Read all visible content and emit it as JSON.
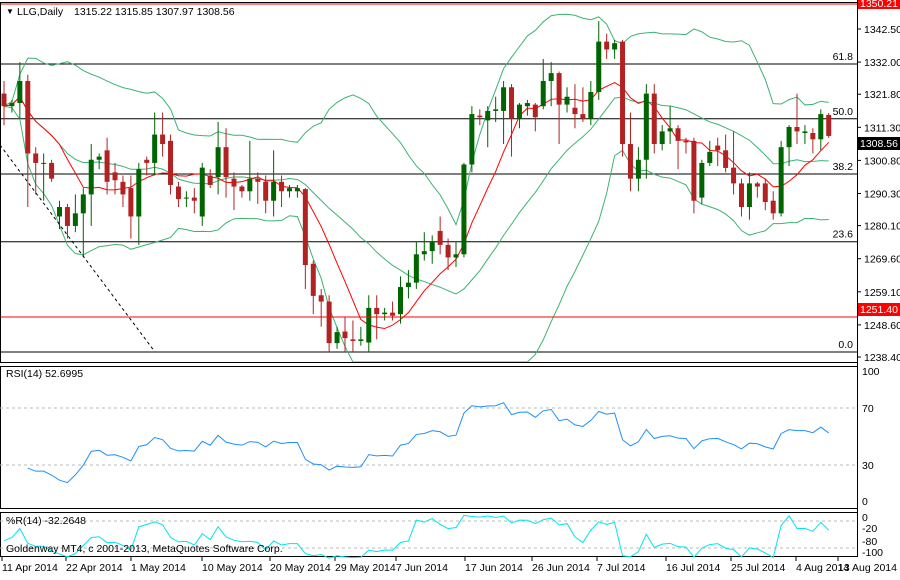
{
  "header": {
    "symbol": "LLG,Daily",
    "ohlc": "1315.22 1315.85 1307.97 1308.56"
  },
  "rsi_panel": {
    "label": "RSI(14) 52.6995",
    "ticks": [
      "100",
      "70",
      "30",
      "0"
    ]
  },
  "wpr_panel": {
    "label": "%R(14) -32.2648",
    "ticks": [
      "0",
      "-20",
      "-80",
      "-100"
    ]
  },
  "copyright": "Goldenway MT4, c 2001-2013, MetaQuotes Software Corp.",
  "colors": {
    "bull": "#006400",
    "bear": "#B22222",
    "ma": "#FF0000",
    "bands": "#3CB371",
    "rsi": "#1E90FF",
    "wpr": "#00E5EE"
  },
  "chart_data": {
    "type": "candlestick",
    "price_axis": {
      "range": [
        1238.4,
        1342.5
      ],
      "ticks": [
        "1342.50",
        "1332.00",
        "1321.80",
        "1311.30",
        "1300.80",
        "1290.30",
        "1280.10",
        "1269.60",
        "1259.10",
        "1248.60",
        "1238.40"
      ]
    },
    "date_ticks": [
      "11 Apr 2014",
      "22 Apr 2014",
      "1 May 2014",
      "10 May 2014",
      "20 May 2014",
      "29 May 2014",
      "7 Jun 2014",
      "17 Jun 2014",
      "26 Jun 2014",
      "7 Jul 2014",
      "16 Jul 2014",
      "25 Jul 2014",
      "4 Aug 2014",
      "13 Aug 2014"
    ],
    "price_labels": {
      "current": "1308.56",
      "red_line": "1251.40",
      "top_line": "1350.21"
    },
    "fib_levels": [
      {
        "label": "61.8",
        "price": 1331.4
      },
      {
        "label": "50.0",
        "price": 1314.0
      },
      {
        "label": "38.2",
        "price": 1296.5
      },
      {
        "label": "23.6",
        "price": 1275.0
      },
      {
        "label": "0.0",
        "price": 1240.0
      }
    ],
    "ohlc": [
      [
        1322,
        1326,
        1312,
        1318
      ],
      [
        1318,
        1320,
        1316,
        1319
      ],
      [
        1319,
        1332,
        1314,
        1326
      ],
      [
        1326,
        1328,
        1286,
        1303
      ],
      [
        1303,
        1305,
        1290,
        1300
      ],
      [
        1300,
        1303,
        1288,
        1300
      ],
      [
        1300,
        1301,
        1294,
        1295
      ],
      [
        1283,
        1288,
        1279,
        1286
      ],
      [
        1286,
        1287,
        1276,
        1280
      ],
      [
        1280,
        1290,
        1278,
        1284
      ],
      [
        1284,
        1292,
        1270,
        1290
      ],
      [
        1290,
        1306,
        1280,
        1301
      ],
      [
        1301,
        1303,
        1298,
        1302
      ],
      [
        1304,
        1308,
        1290,
        1294
      ],
      [
        1297,
        1300,
        1290,
        1294.5
      ],
      [
        1294,
        1296,
        1286,
        1290
      ],
      [
        1292,
        1296,
        1276,
        1283
      ],
      [
        1283,
        1300,
        1274,
        1298
      ],
      [
        1301,
        1302,
        1296,
        1300
      ],
      [
        1300,
        1316,
        1296,
        1309
      ],
      [
        1309,
        1316,
        1302,
        1306
      ],
      [
        1307,
        1309,
        1290,
        1293
      ],
      [
        1292.5,
        1294,
        1286,
        1288.5
      ],
      [
        1289,
        1291,
        1286,
        1289
      ],
      [
        1289,
        1292,
        1284,
        1288
      ],
      [
        1283,
        1300,
        1280,
        1298.5
      ],
      [
        1296,
        1298,
        1292,
        1293
      ],
      [
        1295.5,
        1313,
        1290,
        1305
      ],
      [
        1305,
        1311,
        1289,
        1295.5
      ],
      [
        1295,
        1297,
        1285,
        1292.5
      ],
      [
        1292.5,
        1293,
        1289,
        1291
      ],
      [
        1291,
        1307,
        1288,
        1295
      ],
      [
        1295,
        1297,
        1287,
        1294
      ],
      [
        1294,
        1296,
        1284,
        1288
      ],
      [
        1288,
        1304,
        1283,
        1294
      ],
      [
        1294,
        1296,
        1286,
        1291
      ],
      [
        1291,
        1293,
        1289,
        1292
      ],
      [
        1291,
        1293,
        1289,
        1292
      ],
      [
        1291.7,
        1292,
        1260,
        1267.6
      ],
      [
        1268,
        1269,
        1252,
        1257.8
      ],
      [
        1258,
        1260,
        1248,
        1256
      ],
      [
        1256,
        1258,
        1240,
        1242.8
      ],
      [
        1242.8,
        1248,
        1241,
        1246.3
      ],
      [
        1246.5,
        1251,
        1240,
        1244.4
      ],
      [
        1244,
        1250,
        1240,
        1243.5
      ],
      [
        1243.5,
        1248,
        1242,
        1244
      ],
      [
        1243,
        1258,
        1240,
        1254
      ],
      [
        1254,
        1258,
        1244,
        1252
      ],
      [
        1252,
        1254,
        1250,
        1252.5
      ],
      [
        1252.5,
        1256,
        1250,
        1251.5
      ],
      [
        1252,
        1264,
        1249,
        1260.6
      ],
      [
        1260.6,
        1266,
        1257,
        1262
      ],
      [
        1262,
        1275,
        1260,
        1271
      ],
      [
        1271,
        1278,
        1269,
        1272
      ],
      [
        1272,
        1277,
        1268,
        1275
      ],
      [
        1278.4,
        1283,
        1271,
        1274
      ],
      [
        1274,
        1276,
        1266,
        1270
      ],
      [
        1270,
        1275,
        1267,
        1271
      ],
      [
        1271,
        1300,
        1270,
        1299.5
      ],
      [
        1299.5,
        1318,
        1297,
        1315.5
      ],
      [
        1315,
        1317,
        1312,
        1314.5
      ],
      [
        1313.5,
        1318,
        1305,
        1316.5
      ],
      [
        1316.5,
        1321,
        1313,
        1317
      ],
      [
        1316.5,
        1326,
        1306,
        1324
      ],
      [
        1324,
        1325,
        1302,
        1314
      ],
      [
        1314,
        1319,
        1311,
        1318.5
      ],
      [
        1318,
        1320,
        1315,
        1319
      ],
      [
        1318.5,
        1319,
        1310,
        1314.5
      ],
      [
        1318,
        1333,
        1317,
        1326
      ],
      [
        1326,
        1332,
        1318,
        1328.5
      ],
      [
        1328.5,
        1329,
        1306,
        1318.5
      ],
      [
        1318.5,
        1324,
        1316,
        1321
      ],
      [
        1317.5,
        1325,
        1311,
        1315.5
      ],
      [
        1315.5,
        1324,
        1313,
        1314
      ],
      [
        1314,
        1326,
        1312,
        1322.5
      ],
      [
        1322.5,
        1345,
        1320,
        1338.5
      ],
      [
        1338.5,
        1341,
        1333,
        1336
      ],
      [
        1336,
        1339,
        1333,
        1338
      ],
      [
        1338.5,
        1339,
        1302,
        1306
      ],
      [
        1306,
        1316,
        1291,
        1295
      ],
      [
        1295,
        1305,
        1291,
        1301
      ],
      [
        1301,
        1325,
        1295,
        1322
      ],
      [
        1322,
        1325,
        1303,
        1306
      ],
      [
        1306,
        1312,
        1304,
        1310
      ],
      [
        1310,
        1318,
        1306,
        1311
      ],
      [
        1311,
        1312,
        1298,
        1307
      ],
      [
        1307,
        1308,
        1303,
        1306.5
      ],
      [
        1307,
        1308,
        1284,
        1288
      ],
      [
        1289,
        1301,
        1287,
        1300
      ],
      [
        1300,
        1307,
        1299,
        1303.5
      ],
      [
        1305.5,
        1308,
        1299,
        1304
      ],
      [
        1304,
        1309,
        1297,
        1298.4
      ],
      [
        1298.5,
        1310,
        1290,
        1293.5
      ],
      [
        1293.5,
        1295,
        1283,
        1286
      ],
      [
        1286,
        1297,
        1282,
        1293.5
      ],
      [
        1293.5,
        1294,
        1289,
        1292.5
      ],
      [
        1293.5,
        1295,
        1285,
        1287.6
      ],
      [
        1288,
        1291,
        1282,
        1284
      ],
      [
        1284,
        1307,
        1283,
        1305
      ],
      [
        1305,
        1312,
        1299,
        1311.4
      ],
      [
        1311.4,
        1322,
        1306,
        1310
      ],
      [
        1309.5,
        1312,
        1306,
        1310
      ],
      [
        1309.5,
        1311,
        1303,
        1307.5
      ],
      [
        1307.5,
        1317,
        1304,
        1315.5
      ],
      [
        1315.22,
        1315.85,
        1307.97,
        1308.56
      ]
    ]
  }
}
